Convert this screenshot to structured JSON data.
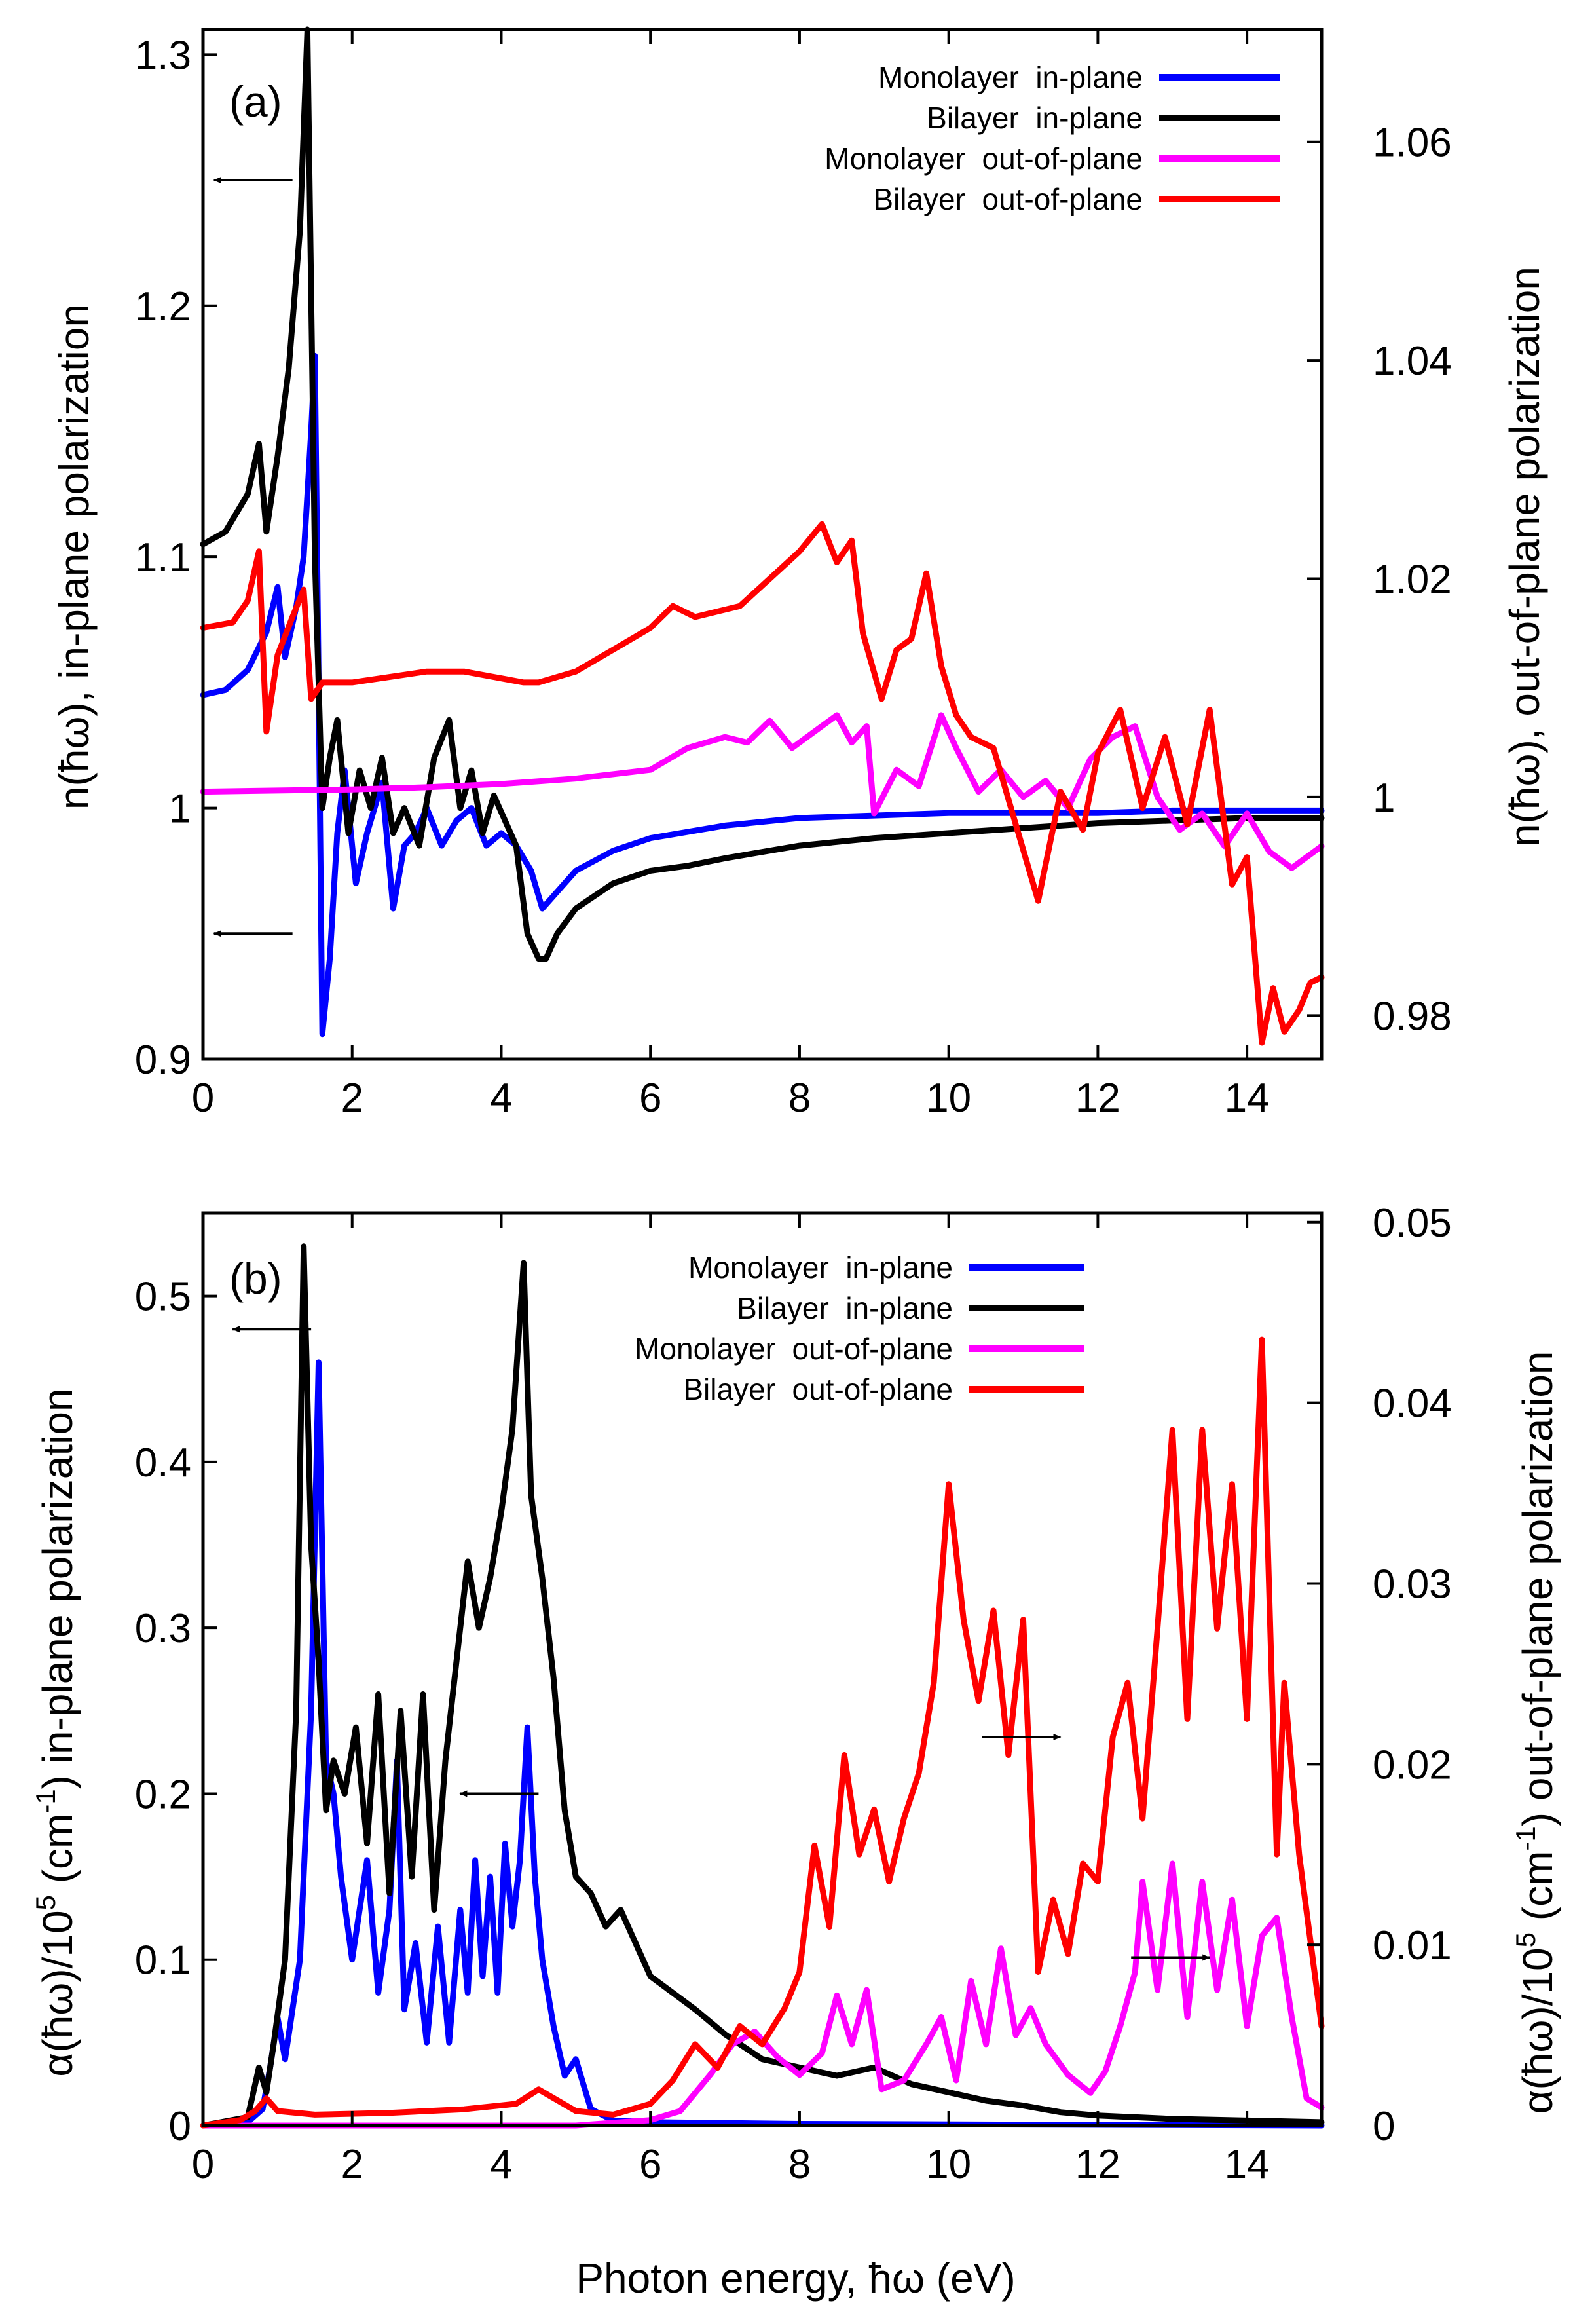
{
  "figure": {
    "xlabel": "Photon energy, ħω (eV)"
  },
  "chart_data": [
    {
      "panel": "(a)",
      "type": "line",
      "title": "",
      "xlabel": "",
      "ylabel_left": "n(ħω), in-plane polarization",
      "ylabel_right": "n(ħω), out-of-plane polarization",
      "xlim": [
        0,
        15
      ],
      "ylim_left": [
        0.9,
        1.31
      ],
      "ylim_right": [
        0.976,
        1.0703
      ],
      "xticks": [
        0,
        2,
        4,
        6,
        8,
        10,
        12,
        14
      ],
      "xtick_labels": [
        "0",
        "2",
        "4",
        "6",
        "8",
        "10",
        "12",
        "14"
      ],
      "yticks_left": [
        0.9,
        1.0,
        1.1,
        1.2,
        1.3
      ],
      "ytick_labels_left": [
        "0.9",
        "1",
        "1.1",
        "1.2",
        "1.3"
      ],
      "yticks_right": [
        0.98,
        1.0,
        1.02,
        1.04,
        1.06
      ],
      "ytick_labels_right": [
        "0.98",
        "1",
        "1.02",
        "1.04",
        "1.06"
      ],
      "legend_position": "top-right",
      "series": [
        {
          "name": "Monolayer  in-plane",
          "axis": "left",
          "color": "#0000ff",
          "x": [
            0,
            0.3,
            0.6,
            0.85,
            1.0,
            1.1,
            1.25,
            1.35,
            1.45,
            1.5,
            1.55,
            1.6,
            1.7,
            1.8,
            1.9,
            2.05,
            2.2,
            2.4,
            2.55,
            2.7,
            2.85,
            3.0,
            3.2,
            3.4,
            3.6,
            3.8,
            4.0,
            4.2,
            4.4,
            4.55,
            4.7,
            5.0,
            5.5,
            6.0,
            7.0,
            8.0,
            9.0,
            10.0,
            11.0,
            12.0,
            13.0,
            14.0,
            15.0
          ],
          "y": [
            1.045,
            1.047,
            1.055,
            1.07,
            1.088,
            1.06,
            1.08,
            1.1,
            1.15,
            1.18,
            1.05,
            0.91,
            0.94,
            0.99,
            1.015,
            0.97,
            0.99,
            1.01,
            0.96,
            0.985,
            0.99,
            1.0,
            0.985,
            0.995,
            1.0,
            0.985,
            0.99,
            0.985,
            0.975,
            0.96,
            0.965,
            0.975,
            0.983,
            0.988,
            0.993,
            0.996,
            0.997,
            0.998,
            0.998,
            0.998,
            0.999,
            0.999,
            0.999
          ]
        },
        {
          "name": "Bilayer  in-plane",
          "axis": "left",
          "color": "#000000",
          "x": [
            0,
            0.3,
            0.6,
            0.75,
            0.85,
            1.0,
            1.15,
            1.3,
            1.4,
            1.5,
            1.6,
            1.7,
            1.8,
            1.95,
            2.1,
            2.25,
            2.4,
            2.55,
            2.7,
            2.9,
            3.1,
            3.3,
            3.45,
            3.6,
            3.75,
            3.9,
            4.05,
            4.2,
            4.35,
            4.5,
            4.6,
            4.75,
            5.0,
            5.5,
            6.0,
            6.5,
            7.0,
            8.0,
            9.0,
            10.0,
            11.0,
            12.0,
            13.0,
            14.0,
            15.0
          ],
          "y": [
            1.105,
            1.11,
            1.125,
            1.145,
            1.11,
            1.14,
            1.175,
            1.23,
            1.31,
            1.1,
            1.0,
            1.02,
            1.035,
            0.99,
            1.015,
            1.0,
            1.02,
            0.99,
            1.0,
            0.985,
            1.02,
            1.035,
            1.0,
            1.015,
            0.99,
            1.005,
            0.995,
            0.985,
            0.95,
            0.94,
            0.94,
            0.95,
            0.96,
            0.97,
            0.975,
            0.977,
            0.98,
            0.985,
            0.988,
            0.99,
            0.992,
            0.994,
            0.995,
            0.996,
            0.996
          ]
        },
        {
          "name": "Monolayer  out-of-plane",
          "axis": "right",
          "color": "#ff00ff",
          "x": [
            0,
            1,
            2,
            3,
            4,
            5,
            6,
            6.5,
            7,
            7.3,
            7.6,
            7.9,
            8.2,
            8.5,
            8.7,
            8.9,
            9.0,
            9.3,
            9.6,
            9.9,
            10.1,
            10.4,
            10.7,
            11.0,
            11.3,
            11.6,
            11.9,
            12.2,
            12.5,
            12.8,
            13.1,
            13.4,
            13.7,
            14.0,
            14.3,
            14.6,
            15.0
          ],
          "y": [
            1.0005,
            1.0006,
            1.0007,
            1.0009,
            1.0012,
            1.0017,
            1.0025,
            1.0045,
            1.0055,
            1.005,
            1.007,
            1.0045,
            1.006,
            1.0075,
            1.005,
            1.0065,
            0.9985,
            1.0025,
            1.001,
            1.0075,
            1.0045,
            1.0005,
            1.0025,
            1.0,
            1.0015,
            0.999,
            1.0035,
            1.0055,
            1.0065,
            1.0,
            0.997,
            0.9985,
            0.9955,
            0.9985,
            0.995,
            0.9935,
            0.9955
          ]
        },
        {
          "name": "Bilayer  out-of-plane",
          "axis": "right",
          "color": "#ff0000",
          "x": [
            0,
            0.4,
            0.6,
            0.75,
            0.85,
            1.0,
            1.2,
            1.35,
            1.45,
            1.6,
            2.0,
            3.0,
            3.5,
            4.3,
            4.5,
            5.0,
            5.5,
            6.0,
            6.3,
            6.6,
            6.9,
            7.2,
            7.6,
            8.0,
            8.3,
            8.5,
            8.7,
            8.85,
            9.1,
            9.3,
            9.5,
            9.7,
            9.9,
            10.1,
            10.3,
            10.6,
            10.9,
            11.2,
            11.5,
            11.8,
            12.0,
            12.3,
            12.6,
            12.9,
            13.2,
            13.5,
            13.8,
            14.0,
            14.2,
            14.35,
            14.5,
            14.7,
            14.85,
            15.0
          ],
          "y": [
            1.0155,
            1.016,
            1.018,
            1.0225,
            1.006,
            1.013,
            1.0165,
            1.019,
            1.009,
            1.0105,
            1.0105,
            1.0115,
            1.0115,
            1.0105,
            1.0105,
            1.0115,
            1.0135,
            1.0155,
            1.0175,
            1.0165,
            1.017,
            1.0175,
            1.02,
            1.0225,
            1.025,
            1.0215,
            1.0235,
            1.015,
            1.009,
            1.0135,
            1.0145,
            1.0205,
            1.012,
            1.0075,
            1.0055,
            1.0045,
            0.9975,
            0.9905,
            1.0005,
            0.997,
            1.004,
            1.008,
            0.999,
            1.0055,
            0.9975,
            1.008,
            0.992,
            0.9945,
            0.9775,
            0.9825,
            0.9785,
            0.9805,
            0.983,
            0.9835
          ]
        }
      ],
      "annotations": [
        {
          "text": "arrow pointing left toward in-plane axis",
          "x": 1.2,
          "y_axis": "left",
          "y": 1.25
        },
        {
          "text": "arrow pointing left toward in-plane axis",
          "x": 1.2,
          "y_axis": "left",
          "y": 0.95
        }
      ]
    },
    {
      "panel": "(b)",
      "type": "line",
      "title": "",
      "xlabel": "Photon energy, ħω (eV)",
      "ylabel_left": "α(ħω)/10⁵ (cm⁻¹) in-plane polarization",
      "ylabel_right": "α(ħω)/10⁵ (cm⁻¹) out-of-plane polarization",
      "xlim": [
        0,
        15
      ],
      "ylim_left": [
        0,
        0.55
      ],
      "ylim_right": [
        0,
        0.0505
      ],
      "xticks": [
        0,
        2,
        4,
        6,
        8,
        10,
        12,
        14
      ],
      "xtick_labels": [
        "0",
        "2",
        "4",
        "6",
        "8",
        "10",
        "12",
        "14"
      ],
      "yticks_left": [
        0,
        0.1,
        0.2,
        0.3,
        0.4,
        0.5
      ],
      "ytick_labels_left": [
        "0",
        "0.1",
        "0.2",
        "0.3",
        "0.4",
        "0.5"
      ],
      "yticks_right": [
        0,
        0.01,
        0.02,
        0.03,
        0.04,
        0.05
      ],
      "ytick_labels_right": [
        "0",
        "0.01",
        "0.02",
        "0.03",
        "0.04",
        "0.05"
      ],
      "legend_position": "top-center",
      "series": [
        {
          "name": "Monolayer  in-plane",
          "axis": "left",
          "color": "#0000ff",
          "x": [
            0,
            0.6,
            0.8,
            0.9,
            1.0,
            1.1,
            1.3,
            1.45,
            1.55,
            1.65,
            1.75,
            1.85,
            2.0,
            2.2,
            2.35,
            2.5,
            2.6,
            2.7,
            2.85,
            3.0,
            3.15,
            3.3,
            3.45,
            3.55,
            3.65,
            3.75,
            3.85,
            3.95,
            4.05,
            4.15,
            4.25,
            4.35,
            4.45,
            4.55,
            4.7,
            4.85,
            5.0,
            5.2,
            5.5,
            6.0,
            8.0,
            15.0
          ],
          "y": [
            0,
            0.002,
            0.01,
            0.035,
            0.065,
            0.04,
            0.1,
            0.25,
            0.46,
            0.22,
            0.2,
            0.15,
            0.1,
            0.16,
            0.08,
            0.13,
            0.22,
            0.07,
            0.11,
            0.05,
            0.12,
            0.05,
            0.13,
            0.08,
            0.16,
            0.09,
            0.15,
            0.08,
            0.17,
            0.12,
            0.16,
            0.24,
            0.15,
            0.1,
            0.06,
            0.03,
            0.04,
            0.01,
            0.003,
            0.002,
            0.001,
            0
          ]
        },
        {
          "name": "Bilayer  in-plane",
          "axis": "left",
          "color": "#000000",
          "x": [
            0,
            0.6,
            0.75,
            0.85,
            0.95,
            1.1,
            1.25,
            1.35,
            1.45,
            1.55,
            1.65,
            1.75,
            1.9,
            2.05,
            2.2,
            2.35,
            2.5,
            2.65,
            2.8,
            2.95,
            3.1,
            3.25,
            3.4,
            3.55,
            3.7,
            3.85,
            4.0,
            4.15,
            4.3,
            4.4,
            4.55,
            4.7,
            4.85,
            5.0,
            5.2,
            5.4,
            5.6,
            5.8,
            6.0,
            6.3,
            6.6,
            7.0,
            7.5,
            8.0,
            8.5,
            9.0,
            9.5,
            10.0,
            10.5,
            11.0,
            11.5,
            12.0,
            13.0,
            14.0,
            15.0
          ],
          "y": [
            0,
            0.005,
            0.035,
            0.02,
            0.05,
            0.1,
            0.25,
            0.53,
            0.35,
            0.28,
            0.19,
            0.22,
            0.2,
            0.24,
            0.17,
            0.26,
            0.14,
            0.25,
            0.15,
            0.26,
            0.13,
            0.22,
            0.28,
            0.34,
            0.3,
            0.33,
            0.37,
            0.42,
            0.52,
            0.38,
            0.33,
            0.27,
            0.19,
            0.15,
            0.14,
            0.12,
            0.13,
            0.11,
            0.09,
            0.08,
            0.07,
            0.055,
            0.04,
            0.035,
            0.03,
            0.035,
            0.025,
            0.02,
            0.015,
            0.012,
            0.008,
            0.006,
            0.004,
            0.003,
            0.002
          ]
        },
        {
          "name": "Monolayer  out-of-plane",
          "axis": "right",
          "color": "#ff00ff",
          "x": [
            0,
            5,
            6,
            6.4,
            6.8,
            7.1,
            7.4,
            7.7,
            8.0,
            8.3,
            8.5,
            8.7,
            8.9,
            9.1,
            9.4,
            9.7,
            9.9,
            10.1,
            10.3,
            10.5,
            10.7,
            10.9,
            11.1,
            11.3,
            11.6,
            11.9,
            12.1,
            12.3,
            12.5,
            12.6,
            12.8,
            13.0,
            13.2,
            13.4,
            13.6,
            13.8,
            14.0,
            14.2,
            14.4,
            14.6,
            14.8,
            15.0
          ],
          "y": [
            0,
            0,
            0.0003,
            0.0008,
            0.0028,
            0.0045,
            0.0052,
            0.0038,
            0.0028,
            0.004,
            0.0072,
            0.0045,
            0.0075,
            0.002,
            0.0025,
            0.0045,
            0.006,
            0.0025,
            0.008,
            0.0045,
            0.0098,
            0.005,
            0.0065,
            0.0045,
            0.0028,
            0.0018,
            0.003,
            0.0055,
            0.0085,
            0.0135,
            0.0075,
            0.0145,
            0.006,
            0.0135,
            0.0075,
            0.0125,
            0.0055,
            0.0105,
            0.0115,
            0.006,
            0.0015,
            0.001
          ]
        },
        {
          "name": "Bilayer  out-of-plane",
          "axis": "right",
          "color": "#ff0000",
          "x": [
            0,
            0.5,
            0.7,
            0.85,
            1.0,
            1.5,
            2.5,
            3.5,
            4.2,
            4.5,
            5.0,
            5.5,
            6.0,
            6.3,
            6.6,
            6.9,
            7.2,
            7.5,
            7.8,
            8.0,
            8.2,
            8.4,
            8.6,
            8.8,
            9.0,
            9.2,
            9.4,
            9.6,
            9.8,
            10.0,
            10.2,
            10.4,
            10.6,
            10.8,
            11.0,
            11.2,
            11.4,
            11.6,
            11.8,
            12.0,
            12.2,
            12.4,
            12.6,
            12.8,
            13.0,
            13.2,
            13.4,
            13.6,
            13.8,
            14.0,
            14.2,
            14.4,
            14.5,
            14.7,
            15.0
          ],
          "y": [
            0,
            0.0003,
            0.0008,
            0.0015,
            0.0008,
            0.0006,
            0.0007,
            0.0009,
            0.0012,
            0.002,
            0.0008,
            0.0006,
            0.0012,
            0.0025,
            0.0045,
            0.0032,
            0.0055,
            0.0045,
            0.0065,
            0.0085,
            0.0155,
            0.011,
            0.0205,
            0.015,
            0.0175,
            0.0135,
            0.017,
            0.0195,
            0.0245,
            0.0355,
            0.028,
            0.0235,
            0.0285,
            0.0205,
            0.028,
            0.0085,
            0.0125,
            0.0095,
            0.0145,
            0.0135,
            0.0215,
            0.0245,
            0.017,
            0.0275,
            0.0385,
            0.0225,
            0.0385,
            0.0275,
            0.0355,
            0.0225,
            0.0435,
            0.015,
            0.0245,
            0.015,
            0.0055
          ]
        }
      ],
      "annotations": [
        {
          "text": "arrow pointing left toward in-plane axis",
          "x": 1.45,
          "y_axis": "left",
          "y": 0.48
        },
        {
          "text": "arrow pointing left toward in-plane axis",
          "x": 4.5,
          "y_axis": "left",
          "y": 0.2
        },
        {
          "text": "arrow pointing right toward out-of-plane axis",
          "x": 11.5,
          "y_axis": "right",
          "y": 0.0215
        },
        {
          "text": "arrow pointing right toward out-of-plane axis",
          "x": 13.5,
          "y_axis": "right",
          "y": 0.0093
        }
      ]
    }
  ]
}
